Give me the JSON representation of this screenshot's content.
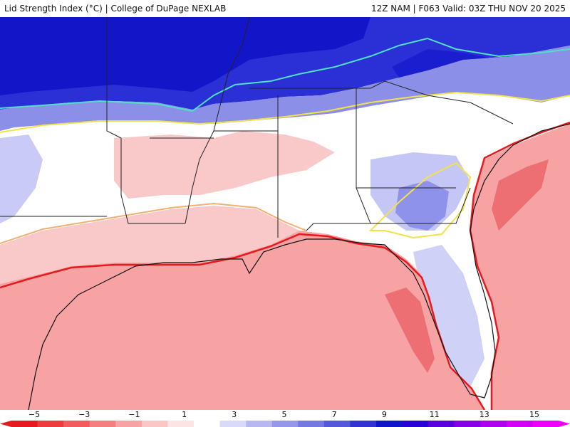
{
  "header": {
    "title": "Lid Strength Index (°C) | College of DuPage NEXLAB",
    "run_info": "12Z NAM | F063 Valid: 03Z THU NOV 20 2025"
  },
  "colorbar": {
    "tick_labels": [
      "−5",
      "−3",
      "−1",
      "1",
      "3",
      "5",
      "7",
      "9",
      "11",
      "13",
      "15"
    ],
    "colors": [
      "#e8191e",
      "#ee3b3e",
      "#f25c5f",
      "#f47e80",
      "#f7a3a4",
      "#fac6c6",
      "#fde4e4",
      "#ffffff",
      "#d9dafa",
      "#b7b8f2",
      "#9697ea",
      "#7577e2",
      "#5558da",
      "#3134d2",
      "#1014ca",
      "#2a00d8",
      "#5a00e0",
      "#8800e8",
      "#b000f0",
      "#d200f6",
      "#ee00fb"
    ]
  },
  "colors": {
    "gulf_warm": "#f7a3a4",
    "gulf_hot": "#ee6f73",
    "land_neutral": "#ffffff",
    "lid_weak": "#d9dafa",
    "lid_moderate": "#9697ea",
    "lid_strong": "#3a3fe0",
    "lid_very_strong": "#1216c8",
    "contour_red": "#e8191e",
    "contour_yellow": "#f2e24a",
    "contour_cyan": "#4fe0c8",
    "contour_orange": "#f3b070"
  }
}
